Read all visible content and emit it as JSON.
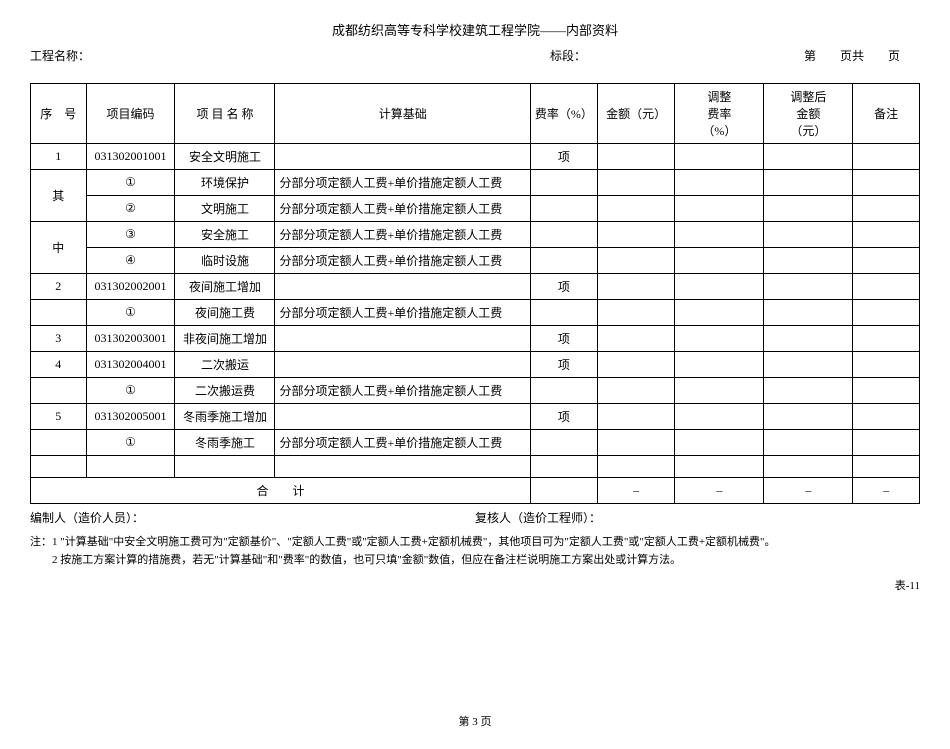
{
  "header": "成都纺织高等专科学校建筑工程学院——内部资料",
  "info": {
    "project_label": "工程名称：",
    "section_label": "标段：",
    "page_label": "第　　页共　　页"
  },
  "columns": {
    "seq": "序　号",
    "code": "项目编码",
    "name": "项 目  名 称",
    "basis": "计算基础",
    "rate": "费率（%）",
    "amount": "金额（元）",
    "adjrate1": "调整",
    "adjrate2": "费率",
    "adjrate3": "（%）",
    "adjamount1": "调整后",
    "adjamount2": "金额",
    "adjamount3": "（元）",
    "remark": "备注"
  },
  "rows": [
    {
      "seq": "1",
      "code": "031302001001",
      "name": "安全文明施工",
      "basis": "",
      "rate": "项",
      "amount": "",
      "adjrate": "",
      "adjamount": "",
      "remark": ""
    },
    {
      "seq": "其",
      "seq_rowspan": true,
      "code": "①",
      "name": "环境保护",
      "basis": "分部分项定额人工费+单价措施定额人工费",
      "rate": "",
      "amount": "",
      "adjrate": "",
      "adjamount": "",
      "remark": ""
    },
    {
      "seq": "",
      "code": "②",
      "name": "文明施工",
      "basis": "分部分项定额人工费+单价措施定额人工费",
      "rate": "",
      "amount": "",
      "adjrate": "",
      "adjamount": "",
      "remark": ""
    },
    {
      "seq": "中",
      "code": "③",
      "name": "安全施工",
      "basis": "分部分项定额人工费+单价措施定额人工费",
      "rate": "",
      "amount": "",
      "adjrate": "",
      "adjamount": "",
      "remark": ""
    },
    {
      "seq": "",
      "code": "④",
      "name": "临时设施",
      "basis": "分部分项定额人工费+单价措施定额人工费",
      "rate": "",
      "amount": "",
      "adjrate": "",
      "adjamount": "",
      "remark": ""
    },
    {
      "seq": "2",
      "code": "031302002001",
      "name": "夜间施工增加",
      "basis": "",
      "rate": "项",
      "amount": "",
      "adjrate": "",
      "adjamount": "",
      "remark": ""
    },
    {
      "seq": "",
      "code": "①",
      "name": "夜间施工费",
      "basis": "分部分项定额人工费+单价措施定额人工费",
      "rate": "",
      "amount": "",
      "adjrate": "",
      "adjamount": "",
      "remark": ""
    },
    {
      "seq": "3",
      "code": "031302003001",
      "name": "非夜间施工增加",
      "basis": "",
      "rate": "项",
      "amount": "",
      "adjrate": "",
      "adjamount": "",
      "remark": ""
    },
    {
      "seq": "4",
      "code": "031302004001",
      "name": "二次搬运",
      "basis": "",
      "rate": "项",
      "amount": "",
      "adjrate": "",
      "adjamount": "",
      "remark": ""
    },
    {
      "seq": "",
      "code": "①",
      "name": "二次搬运费",
      "basis": "分部分项定额人工费+单价措施定额人工费",
      "rate": "",
      "amount": "",
      "adjrate": "",
      "adjamount": "",
      "remark": ""
    },
    {
      "seq": "5",
      "code": "031302005001",
      "name": "冬雨季施工增加",
      "basis": "",
      "rate": "项",
      "amount": "",
      "adjrate": "",
      "adjamount": "",
      "remark": ""
    },
    {
      "seq": "",
      "code": "①",
      "name": "冬雨季施工",
      "basis": "分部分项定额人工费+单价措施定额人工费",
      "rate": "",
      "amount": "",
      "adjrate": "",
      "adjamount": "",
      "remark": ""
    },
    {
      "seq": "",
      "code": "",
      "name": "",
      "basis": "",
      "rate": "",
      "amount": "",
      "adjrate": "",
      "adjamount": "",
      "remark": ""
    }
  ],
  "total": {
    "label": "合　　计",
    "rate": "",
    "amount": "–",
    "adjrate": "–",
    "adjamount": "–",
    "remark": "–"
  },
  "footer": {
    "preparer": "编制人（造价人员）：",
    "reviewer": "复核人（造价工程师）："
  },
  "notes": {
    "line1": "注：1 \"计算基础\"中安全文明施工费可为\"定额基价\"、\"定额人工费\"或\"定额人工费+定额机械费\"，其他项目可为\"定额人工费\"或\"定额人工费+定额机械费\"。",
    "line2": "　　2 按施工方案计算的措施费，若无\"计算基础\"和\"费率\"的数值，也可只填\"金额\"数值，但应在备注栏说明施工方案出处或计算方法。"
  },
  "table_code": "表-11",
  "page_num": "第 3 页"
}
